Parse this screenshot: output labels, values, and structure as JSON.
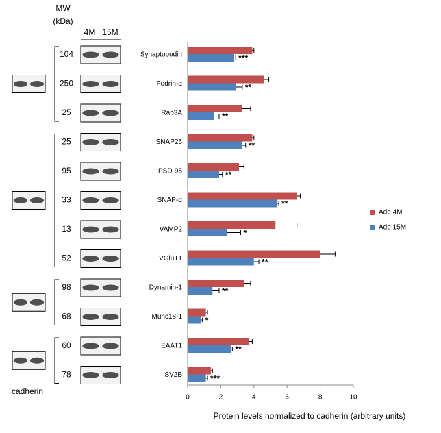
{
  "chart_data": {
    "type": "bar",
    "orientation": "horizontal",
    "categories": [
      "Synaptopodin",
      "Fodrin-α",
      "Rab3A",
      "SNAP25",
      "PSD-95",
      "SNAP-α",
      "VAMP2",
      "VGluT1",
      "Dynamin-1",
      "Munc18-1",
      "EAAT1",
      "SV2B"
    ],
    "series": [
      {
        "name": "Ade 4M",
        "color": "#c0504d",
        "values": [
          3.9,
          4.6,
          3.3,
          3.9,
          3.1,
          6.6,
          5.3,
          8.0,
          3.4,
          1.1,
          3.7,
          1.4
        ],
        "errors": [
          0.1,
          0.3,
          0.5,
          0.1,
          0.3,
          0.2,
          1.3,
          0.9,
          0.4,
          0.1,
          0.2,
          0.1
        ]
      },
      {
        "name": "Ade 15M",
        "color": "#4f81bd",
        "values": [
          2.8,
          2.9,
          1.6,
          3.3,
          1.9,
          5.4,
          2.4,
          4.0,
          1.5,
          0.8,
          2.6,
          1.1
        ],
        "errors": [
          0.1,
          0.4,
          0.3,
          0.2,
          0.2,
          0.1,
          0.8,
          0.3,
          0.4,
          0.1,
          0.1,
          0.1
        ]
      }
    ],
    "annotations": [
      "***",
      "**",
      "**",
      "**",
      "**",
      "**",
      "*",
      "**",
      "**",
      "*",
      "**",
      "***"
    ],
    "xlabel": "Protein levels normalized to cadherin (arbitrary units)",
    "xlim": [
      0,
      10
    ],
    "xticks": [
      0,
      2,
      4,
      6,
      8,
      10
    ],
    "legend": "right"
  },
  "blot": {
    "mw_header": [
      "MW",
      "(kDa)"
    ],
    "lanes": [
      "4M",
      "15M"
    ],
    "mw": [
      "104",
      "250",
      "25",
      "25",
      "95",
      "33",
      "13",
      "52",
      "98",
      "68",
      "60",
      "78"
    ],
    "loading_control": "cadherin"
  }
}
